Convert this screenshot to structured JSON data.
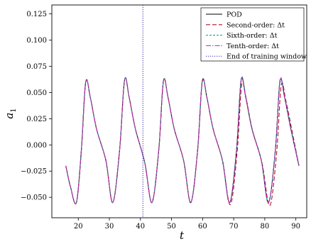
{
  "chart_data": {
    "type": "line",
    "title": "",
    "xlabel": "t",
    "ylabel_base": "a",
    "ylabel_sub": "1",
    "xlim": [
      11.5,
      93.5
    ],
    "ylim": [
      -0.0695,
      0.1335
    ],
    "xticks": [
      20,
      30,
      40,
      50,
      60,
      70,
      80,
      90
    ],
    "xtick_labels": [
      "20",
      "30",
      "40",
      "50",
      "60",
      "70",
      "80",
      "90"
    ],
    "yticks": [
      -0.05,
      -0.025,
      0.0,
      0.025,
      0.05,
      0.075,
      0.1,
      0.125
    ],
    "ytick_labels": [
      "−0.050",
      "−0.025",
      "0.000",
      "0.025",
      "0.050",
      "0.075",
      "0.100",
      "0.125"
    ],
    "grid": false,
    "legend_position": "top-right",
    "end_of_training_x": 40.8,
    "series": [
      {
        "name": "POD",
        "color": "#000000",
        "dash": "solid",
        "x": [
          16.0,
          17.5,
          19.4,
          21.0,
          22.4,
          23.9,
          25.9,
          28.9,
          31.1,
          33.3,
          34.9,
          36.4,
          38.4,
          41.4,
          43.7,
          45.9,
          47.4,
          48.9,
          50.9,
          53.9,
          56.2,
          58.4,
          59.9,
          61.4,
          63.4,
          66.4,
          68.7,
          70.9,
          72.4,
          73.9,
          75.9,
          78.9,
          81.2,
          83.4,
          84.9,
          86.4,
          88.4,
          91.0
        ],
        "y": [
          -0.02,
          -0.04,
          -0.055,
          -0.005,
          0.06,
          0.045,
          0.015,
          -0.015,
          -0.055,
          -0.005,
          0.062,
          0.045,
          0.015,
          -0.017,
          -0.055,
          -0.005,
          0.061,
          0.045,
          0.015,
          -0.015,
          -0.055,
          -0.005,
          0.061,
          0.045,
          0.015,
          -0.015,
          -0.055,
          -0.005,
          0.062,
          0.045,
          0.015,
          -0.015,
          -0.055,
          -0.005,
          0.061,
          0.045,
          0.015,
          -0.02
        ]
      },
      {
        "name": "Second-order: Δt",
        "color": "#b0102c",
        "dash": "dashed",
        "x": [
          16.0,
          17.5,
          19.4,
          21.0,
          22.4,
          23.9,
          25.9,
          28.9,
          31.1,
          33.3,
          34.9,
          36.4,
          38.4,
          41.4,
          43.7,
          45.9,
          47.4,
          48.9,
          50.9,
          53.9,
          56.2,
          58.4,
          59.9,
          61.4,
          63.4,
          66.4,
          68.9,
          71.1,
          72.6,
          74.1,
          76.1,
          79.1,
          81.6,
          83.8,
          85.3,
          86.8,
          88.8,
          91.0
        ],
        "y": [
          -0.02,
          -0.04,
          -0.055,
          -0.005,
          0.06,
          0.045,
          0.015,
          -0.015,
          -0.055,
          -0.005,
          0.062,
          0.045,
          0.015,
          -0.017,
          -0.055,
          -0.005,
          0.061,
          0.045,
          0.015,
          -0.015,
          -0.055,
          -0.005,
          0.06,
          0.045,
          0.015,
          -0.015,
          -0.057,
          -0.007,
          0.058,
          0.043,
          0.013,
          -0.017,
          -0.058,
          -0.008,
          0.057,
          0.042,
          0.013,
          -0.02
        ]
      },
      {
        "name": "Sixth-order: Δt",
        "color": "#1aa7a0",
        "dash": "dashed-fine",
        "x": [
          16.0,
          17.5,
          19.4,
          21.0,
          22.4,
          23.9,
          25.9,
          28.9,
          31.1,
          33.3,
          34.9,
          36.4,
          38.4,
          41.4,
          43.7,
          45.9,
          47.4,
          48.9,
          50.9,
          53.9,
          56.2,
          58.4,
          59.9,
          61.4,
          63.4,
          66.4,
          68.7,
          70.9,
          72.4,
          73.9,
          75.9,
          78.9,
          81.2,
          83.4,
          84.9,
          86.4,
          88.4,
          91.0
        ],
        "y": [
          -0.02,
          -0.04,
          -0.055,
          -0.005,
          0.06,
          0.045,
          0.015,
          -0.015,
          -0.055,
          -0.005,
          0.062,
          0.045,
          0.015,
          -0.017,
          -0.055,
          -0.005,
          0.061,
          0.045,
          0.015,
          -0.015,
          -0.055,
          -0.005,
          0.061,
          0.045,
          0.015,
          -0.015,
          -0.055,
          -0.005,
          0.063,
          0.046,
          0.016,
          -0.015,
          -0.055,
          -0.005,
          0.062,
          0.046,
          0.016,
          -0.02
        ]
      },
      {
        "name": "Tenth-order: Δt",
        "color": "#c21fb5",
        "dash": "dashdot",
        "x": [
          16.0,
          17.5,
          19.4,
          21.0,
          22.4,
          23.9,
          25.9,
          28.9,
          31.1,
          33.3,
          34.9,
          36.4,
          38.4,
          41.4,
          43.7,
          45.9,
          47.4,
          48.9,
          50.9,
          53.9,
          56.2,
          58.4,
          59.9,
          61.4,
          63.4,
          66.4,
          68.7,
          70.9,
          72.4,
          73.9,
          75.9,
          78.9,
          81.2,
          83.4,
          84.9,
          86.4,
          88.4,
          91.0
        ],
        "y": [
          -0.02,
          -0.04,
          -0.055,
          -0.005,
          0.06,
          0.045,
          0.015,
          -0.015,
          -0.055,
          -0.005,
          0.062,
          0.045,
          0.015,
          -0.017,
          -0.055,
          -0.005,
          0.061,
          0.045,
          0.015,
          -0.015,
          -0.055,
          -0.005,
          0.061,
          0.045,
          0.015,
          -0.015,
          -0.055,
          -0.005,
          0.062,
          0.045,
          0.015,
          -0.015,
          -0.055,
          -0.005,
          0.061,
          0.045,
          0.015,
          -0.02
        ]
      }
    ],
    "legend_entries": [
      {
        "label": "POD",
        "color": "#000000",
        "dash": "solid"
      },
      {
        "label": "Second-order: Δt",
        "color": "#b0102c",
        "dash": "dashed"
      },
      {
        "label": "Sixth-order: Δt",
        "color": "#1aa7a0",
        "dash": "dashed-fine"
      },
      {
        "label": "Tenth-order: Δt",
        "color": "#c21fb5",
        "dash": "dashdot"
      },
      {
        "label": "End of training window",
        "color": "#3b2ca8",
        "dash": "dotted"
      }
    ]
  }
}
